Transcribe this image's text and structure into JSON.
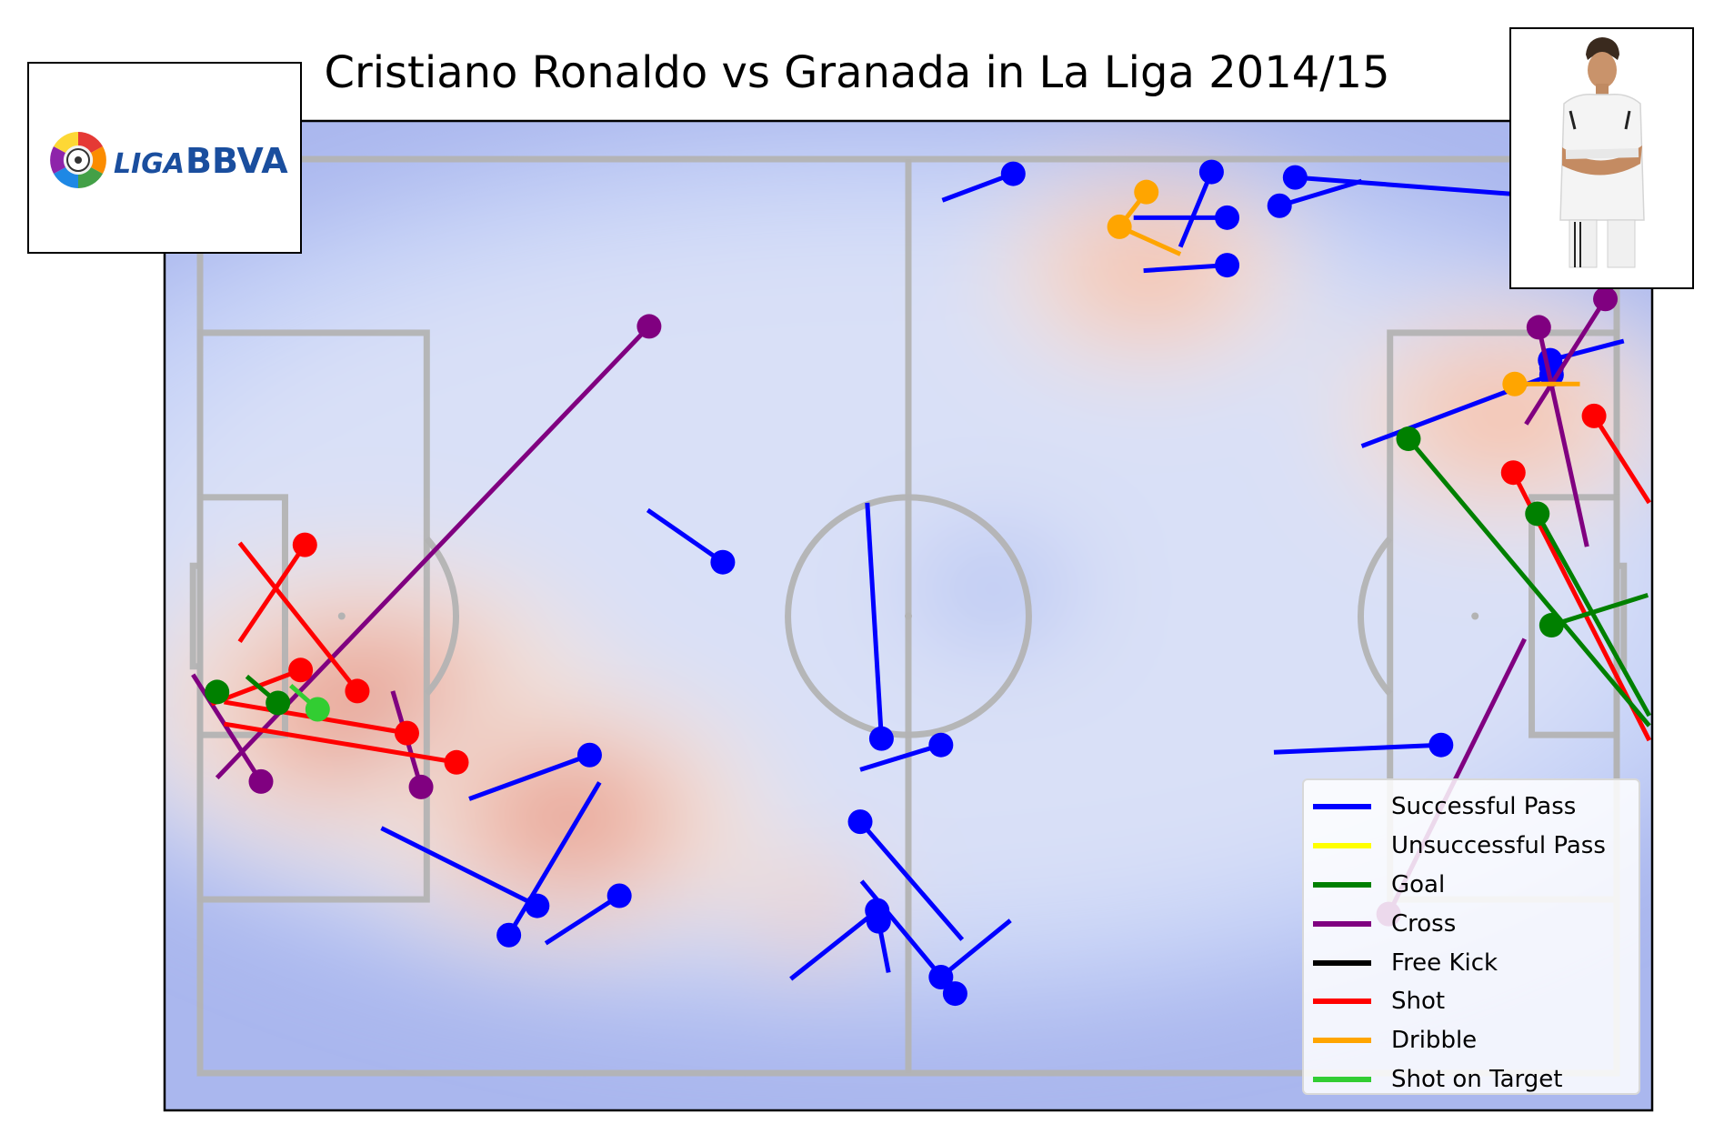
{
  "title": "Cristiano Ronaldo vs Granada in La Liga 2014/15",
  "logo": {
    "brand_prefix": "LIGA",
    "brand_suffix": "BBVA"
  },
  "colors": {
    "pass": "#0000ff",
    "unsuccessful_pass": "#ffff00",
    "goal": "#008000",
    "cross": "#800080",
    "free_kick": "#000000",
    "shot": "#ff0000",
    "dribble": "#ffa500",
    "shot_on_target": "#32cd32",
    "pitch_lines": "#b3b3b3"
  },
  "chart_data": {
    "type": "scatter",
    "title": "Cristiano Ronaldo vs Granada in La Liga 2014/15",
    "xlim": [
      0,
      100
    ],
    "ylim": [
      0,
      100
    ],
    "background": "event density heatmap (kde)",
    "legend": [
      {
        "label": "Successful Pass",
        "key": "pass"
      },
      {
        "label": "Unsuccessful Pass",
        "key": "unsuccessful_pass"
      },
      {
        "label": "Goal",
        "key": "goal"
      },
      {
        "label": "Cross",
        "key": "cross"
      },
      {
        "label": "Free Kick",
        "key": "free_kick"
      },
      {
        "label": "Shot",
        "key": "shot"
      },
      {
        "label": "Dribble",
        "key": "dribble"
      },
      {
        "label": "Shot on Target",
        "key": "shot_on_target"
      }
    ],
    "density_peaks": [
      {
        "x": 12,
        "y": 40,
        "strength": 1.0
      },
      {
        "x": 26,
        "y": 28,
        "strength": 0.85
      },
      {
        "x": 67,
        "y": 88,
        "strength": 0.65
      },
      {
        "x": 92,
        "y": 72,
        "strength": 0.7
      },
      {
        "x": 43,
        "y": 18,
        "strength": 0.3
      }
    ],
    "density_lows": [
      {
        "x": 56,
        "y": 53,
        "strength": 0.45
      }
    ],
    "events": [
      {
        "type": "pass",
        "x": 27.5,
        "y": 34.8,
        "end_x": 19,
        "end_y": 30
      },
      {
        "type": "pass",
        "x": 23.8,
        "y": 18.3,
        "end_x": 12.8,
        "end_y": 26.8
      },
      {
        "type": "pass",
        "x": 21.8,
        "y": 15.1,
        "end_x": 28.2,
        "end_y": 31.8
      },
      {
        "type": "pass",
        "x": 29.6,
        "y": 19.4,
        "end_x": 24.4,
        "end_y": 14.2
      },
      {
        "type": "pass",
        "x": 36.9,
        "y": 55.9,
        "end_x": 31.6,
        "end_y": 61.6
      },
      {
        "type": "pass",
        "x": 48.1,
        "y": 36.6,
        "end_x": 47.1,
        "end_y": 62.4
      },
      {
        "type": "pass",
        "x": 52.3,
        "y": 35.9,
        "end_x": 46.6,
        "end_y": 33.2
      },
      {
        "type": "pass",
        "x": 46.6,
        "y": 27.5,
        "end_x": 53.8,
        "end_y": 14.6
      },
      {
        "type": "pass",
        "x": 47.9,
        "y": 16.6,
        "end_x": 48.6,
        "end_y": 11.0
      },
      {
        "type": "pass",
        "x": 47.8,
        "y": 17.8,
        "end_x": 41.7,
        "end_y": 10.3
      },
      {
        "type": "pass",
        "x": 52.3,
        "y": 10.5,
        "end_x": 57.2,
        "end_y": 16.7
      },
      {
        "type": "pass",
        "x": 53.3,
        "y": 8.7,
        "end_x": 46.7,
        "end_y": 21.0
      },
      {
        "type": "pass",
        "x": 57.4,
        "y": 98.4,
        "end_x": 52.4,
        "end_y": 95.5
      },
      {
        "type": "pass",
        "x": 71.4,
        "y": 98.6,
        "end_x": 69.2,
        "end_y": 90.4
      },
      {
        "type": "pass",
        "x": 72.5,
        "y": 93.6,
        "end_x": 65.9,
        "end_y": 93.6
      },
      {
        "type": "pass",
        "x": 72.5,
        "y": 88.4,
        "end_x": 66.6,
        "end_y": 87.8
      },
      {
        "type": "pass",
        "x": 76.2,
        "y": 94.9,
        "end_x": 82.0,
        "end_y": 97.6
      },
      {
        "type": "pass",
        "x": 77.3,
        "y": 98.0,
        "end_x": 97.6,
        "end_y": 95.6
      },
      {
        "type": "pass",
        "x": 87.6,
        "y": 35.9,
        "end_x": 75.8,
        "end_y": 35.1
      },
      {
        "type": "pass",
        "x": 95.4,
        "y": 76.4,
        "end_x": 82.0,
        "end_y": 68.6
      },
      {
        "type": "pass",
        "x": 95.4,
        "y": 77.2,
        "end_x": 95.4,
        "end_y": 77.2
      },
      {
        "type": "pass",
        "x": 95.3,
        "y": 78.0,
        "end_x": 100.5,
        "end_y": 80.1
      },
      {
        "type": "cross",
        "x": 31.7,
        "y": 81.7,
        "end_x": 1.2,
        "end_y": 32.3
      },
      {
        "type": "cross",
        "x": 4.3,
        "y": 31.9,
        "end_x": -0.5,
        "end_y": 43.6
      },
      {
        "type": "cross",
        "x": 15.6,
        "y": 31.3,
        "end_x": 13.6,
        "end_y": 41.8
      },
      {
        "type": "cross",
        "x": 99.2,
        "y": 84.7,
        "end_x": 93.6,
        "end_y": 71.0
      },
      {
        "type": "cross",
        "x": 94.5,
        "y": 81.6,
        "end_x": 97.9,
        "end_y": 57.6
      },
      {
        "type": "cross",
        "x": 83.9,
        "y": 17.4,
        "end_x": 93.5,
        "end_y": 47.5
      },
      {
        "type": "shot",
        "x": 7.4,
        "y": 57.8,
        "end_x": 2.8,
        "end_y": 47.2
      },
      {
        "type": "shot",
        "x": 7.1,
        "y": 44.1,
        "end_x": 0.8,
        "end_y": 40.4
      },
      {
        "type": "shot",
        "x": 11.1,
        "y": 41.8,
        "end_x": 2.8,
        "end_y": 58.0
      },
      {
        "type": "shot",
        "x": 14.6,
        "y": 37.2,
        "end_x": 1.7,
        "end_y": 40.6
      },
      {
        "type": "shot",
        "x": 18.1,
        "y": 34.0,
        "end_x": 1.7,
        "end_y": 38.2
      },
      {
        "type": "shot",
        "x": 98.4,
        "y": 71.9,
        "end_x": 102.3,
        "end_y": 62.4
      },
      {
        "type": "shot",
        "x": 92.7,
        "y": 65.7,
        "end_x": 102.3,
        "end_y": 36.4
      },
      {
        "type": "goal",
        "x": 5.5,
        "y": 40.5,
        "end_x": 3.3,
        "end_y": 43.4
      },
      {
        "type": "goal",
        "x": 1.2,
        "y": 41.7,
        "end_x": 1.2,
        "end_y": 41.7
      },
      {
        "type": "goal",
        "x": 85.3,
        "y": 69.4,
        "end_x": 102.3,
        "end_y": 38.0
      },
      {
        "type": "goal",
        "x": 94.4,
        "y": 61.2,
        "end_x": 102.3,
        "end_y": 39.1
      },
      {
        "type": "goal",
        "x": 95.4,
        "y": 49.0,
        "end_x": 102.2,
        "end_y": 52.3
      },
      {
        "type": "dribble",
        "x": 66.8,
        "y": 96.4,
        "end_x": 64.9,
        "end_y": 92.6
      },
      {
        "type": "dribble",
        "x": 64.9,
        "y": 92.6,
        "end_x": 69.2,
        "end_y": 89.6
      },
      {
        "type": "dribble",
        "x": 92.8,
        "y": 75.4,
        "end_x": 97.4,
        "end_y": 75.4
      },
      {
        "type": "shot_on_target",
        "x": 8.3,
        "y": 39.8,
        "end_x": 6.4,
        "end_y": 42.4
      }
    ]
  }
}
